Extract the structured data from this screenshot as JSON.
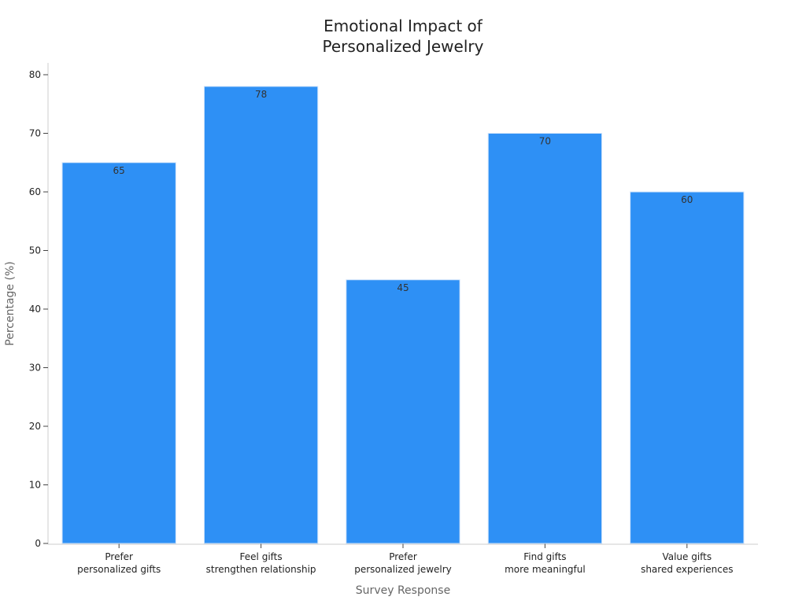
{
  "chart_data": {
    "type": "bar",
    "title": "Emotional Impact of\nPersonalized Jewelry",
    "x_label": "Survey Response",
    "y_label": "Percentage (%)",
    "categories": [
      "Prefer\npersonalized gifts",
      "Feel gifts\nstrengthen relationship",
      "Prefer\npersonalized jewelry",
      "Find gifts\nmore meaningful",
      "Value gifts\nshared experiences"
    ],
    "values": [
      65,
      78,
      45,
      70,
      60
    ],
    "color": "#2e90f5",
    "ylim": [
      0,
      80
    ],
    "yticks": [
      0,
      10,
      20,
      30,
      40,
      50,
      60,
      70,
      80
    ],
    "grid": false
  }
}
